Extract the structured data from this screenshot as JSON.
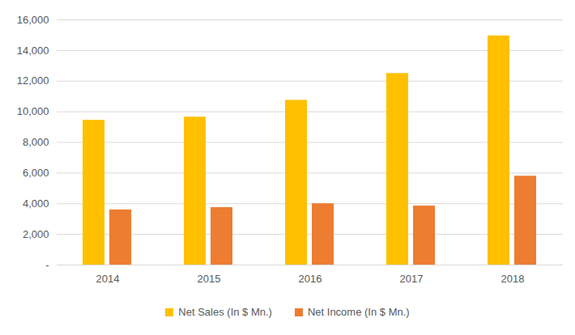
{
  "chart_data": {
    "type": "bar",
    "categories": [
      "2014",
      "2015",
      "2016",
      "2017",
      "2018"
    ],
    "series": [
      {
        "name": "Net Sales (In $ Mn.)",
        "color": "#FFC000",
        "values": [
          9450,
          9650,
          10750,
          12500,
          14950
        ]
      },
      {
        "name": "Net Income (In $ Mn.)",
        "color": "#ED7D31",
        "values": [
          3600,
          3750,
          4000,
          3850,
          5800
        ]
      }
    ],
    "ylim": [
      0,
      16000
    ],
    "yticks": [
      {
        "value": 0,
        "label": "-"
      },
      {
        "value": 2000,
        "label": "2,000"
      },
      {
        "value": 4000,
        "label": "4,000"
      },
      {
        "value": 6000,
        "label": "6,000"
      },
      {
        "value": 8000,
        "label": "8,000"
      },
      {
        "value": 10000,
        "label": "10,000"
      },
      {
        "value": 12000,
        "label": "12,000"
      },
      {
        "value": 14000,
        "label": "14,000"
      },
      {
        "value": 16000,
        "label": "16,000"
      }
    ],
    "grid": true,
    "legend": "bottom"
  }
}
